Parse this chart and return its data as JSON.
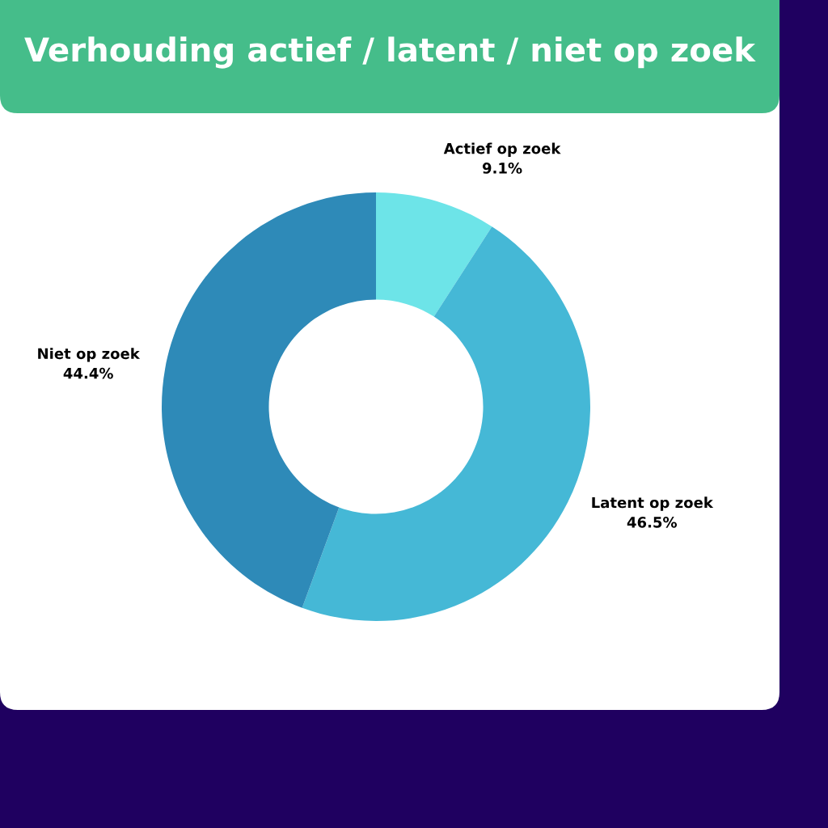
{
  "chart_data": {
    "type": "donut",
    "title": "Verhouding actief / latent / niet op zoek",
    "categories": [
      "Actief op zoek",
      "Latent op zoek",
      "Niet op zoek"
    ],
    "values": [
      9.1,
      46.5,
      44.4
    ],
    "value_labels": [
      "9.1%",
      "46.5%",
      "44.4%"
    ],
    "colors": [
      "#6de4e8",
      "#45b8d6",
      "#2e8ab8"
    ],
    "legend": false
  }
}
